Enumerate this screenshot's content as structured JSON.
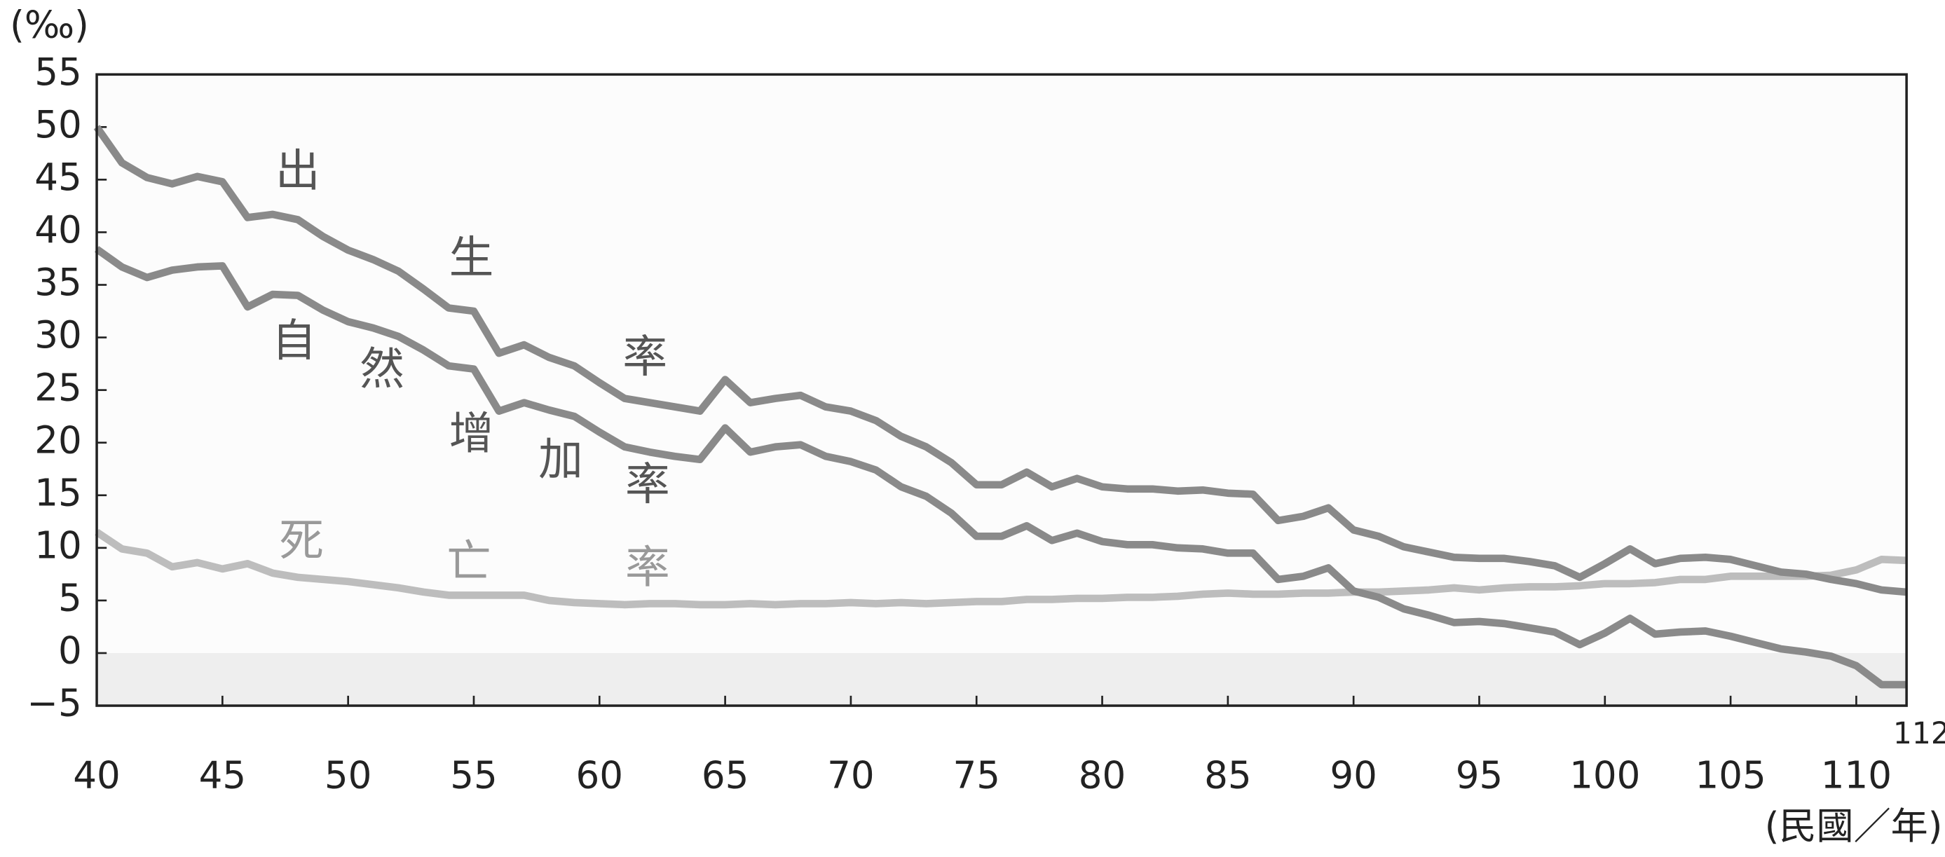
{
  "chart_data": {
    "type": "line",
    "y_unit": "(‰)",
    "x_label": "(民國／年)",
    "x": [
      40,
      41,
      42,
      43,
      44,
      45,
      46,
      47,
      48,
      49,
      50,
      51,
      52,
      53,
      54,
      55,
      56,
      57,
      58,
      59,
      60,
      61,
      62,
      63,
      64,
      65,
      66,
      67,
      68,
      69,
      70,
      71,
      72,
      73,
      74,
      75,
      76,
      77,
      78,
      79,
      80,
      81,
      82,
      83,
      84,
      85,
      86,
      87,
      88,
      89,
      90,
      91,
      92,
      93,
      94,
      95,
      96,
      97,
      98,
      99,
      100,
      101,
      102,
      103,
      104,
      105,
      106,
      107,
      108,
      109,
      110,
      111,
      112
    ],
    "series": [
      {
        "name": "出生率",
        "color": "#8a8a8a",
        "label_color": "#555555",
        "values": [
          50,
          46.6,
          45.2,
          44.6,
          45.3,
          44.8,
          41.4,
          41.7,
          41.2,
          39.6,
          38.3,
          37.4,
          36.3,
          34.6,
          32.8,
          32.5,
          28.5,
          29.3,
          28.1,
          27.3,
          25.7,
          24.2,
          23.8,
          23.4,
          23.0,
          26.0,
          23.8,
          24.2,
          24.5,
          23.4,
          23.0,
          22.1,
          20.6,
          19.6,
          18.1,
          16.0,
          16.0,
          17.2,
          15.8,
          16.6,
          15.8,
          15.6,
          15.6,
          15.4,
          15.5,
          15.2,
          15.1,
          12.6,
          13.0,
          13.8,
          11.7,
          11.1,
          10.1,
          9.6,
          9.1,
          9.0,
          9.0,
          8.7,
          8.3,
          7.2,
          8.5,
          9.9,
          8.5,
          9.0,
          9.1,
          8.9,
          8.3,
          7.7,
          7.5,
          7.0,
          6.6,
          6.0,
          5.8
        ]
      },
      {
        "name": "自然增加率",
        "color": "#8a8a8a",
        "label_color": "#555555",
        "values": [
          38.4,
          36.7,
          35.7,
          36.4,
          36.7,
          36.8,
          32.9,
          34.1,
          34.0,
          32.6,
          31.5,
          30.9,
          30.1,
          28.8,
          27.3,
          27.0,
          23.0,
          23.8,
          23.1,
          22.5,
          21.0,
          19.6,
          19.1,
          18.7,
          18.4,
          21.4,
          19.1,
          19.6,
          19.8,
          18.7,
          18.2,
          17.4,
          15.8,
          14.9,
          13.3,
          11.1,
          11.1,
          12.1,
          10.7,
          11.4,
          10.6,
          10.3,
          10.3,
          10.0,
          9.9,
          9.5,
          9.5,
          7.0,
          7.3,
          8.1,
          5.9,
          5.3,
          4.2,
          3.6,
          2.9,
          3.0,
          2.8,
          2.4,
          2.0,
          0.8,
          1.9,
          3.3,
          1.8,
          2.0,
          2.1,
          1.6,
          1.0,
          0.4,
          0.1,
          -0.3,
          -1.2,
          -3.0,
          -3.0
        ]
      },
      {
        "name": "死亡率",
        "color": "#bdbdbd",
        "label_color": "#999999",
        "values": [
          11.5,
          9.9,
          9.5,
          8.2,
          8.6,
          8.0,
          8.5,
          7.6,
          7.2,
          7.0,
          6.8,
          6.5,
          6.2,
          5.8,
          5.5,
          5.5,
          5.5,
          5.5,
          5.0,
          4.8,
          4.7,
          4.6,
          4.7,
          4.7,
          4.6,
          4.6,
          4.7,
          4.6,
          4.7,
          4.7,
          4.8,
          4.7,
          4.8,
          4.7,
          4.8,
          4.9,
          4.9,
          5.1,
          5.1,
          5.2,
          5.2,
          5.3,
          5.3,
          5.4,
          5.6,
          5.7,
          5.6,
          5.6,
          5.7,
          5.7,
          5.8,
          5.8,
          5.9,
          6.0,
          6.2,
          6.0,
          6.2,
          6.3,
          6.3,
          6.4,
          6.6,
          6.6,
          6.7,
          7.0,
          7.0,
          7.3,
          7.3,
          7.3,
          7.3,
          7.4,
          7.9,
          8.9,
          8.8
        ]
      }
    ],
    "xlim": [
      40,
      112
    ],
    "xticks": [
      40,
      45,
      50,
      55,
      60,
      65,
      70,
      75,
      80,
      85,
      90,
      95,
      100,
      105,
      110,
      112
    ],
    "ylim": [
      -5,
      55
    ],
    "yticks": [
      {
        "value": -5,
        "label": "−5"
      },
      0,
      5,
      10,
      15,
      20,
      25,
      30,
      35,
      40,
      45,
      50,
      55
    ],
    "negative_shade": "#eeeeee"
  }
}
